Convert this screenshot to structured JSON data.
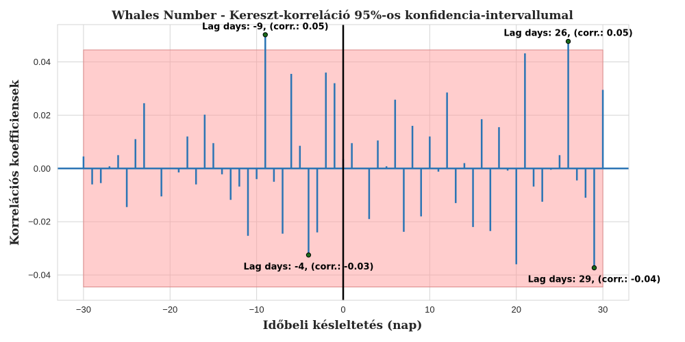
{
  "chart_data": {
    "type": "bar",
    "title": "Whales Number - Kereszt-korreláció 95%-os konfidencia-intervallumal",
    "xlabel": "Időbeli késleltetés (nap)",
    "ylabel": "Korrelációs koefficiensek",
    "xlim": [
      -33,
      33
    ],
    "ylim": [
      -0.0495,
      0.054
    ],
    "x_ticks": [
      -30,
      -20,
      -10,
      0,
      10,
      20,
      30
    ],
    "x_tick_labels": [
      "−30",
      "−20",
      "−10",
      "0",
      "10",
      "20",
      "30"
    ],
    "y_ticks": [
      -0.04,
      -0.02,
      0.0,
      0.02,
      0.04
    ],
    "y_tick_labels": [
      "−0.04",
      "−0.02",
      "0.00",
      "0.02",
      "0.04"
    ],
    "grid": true,
    "confidence_interval": {
      "lower": -0.0445,
      "upper": 0.0445,
      "x_range": [
        -30,
        30
      ]
    },
    "series": [
      {
        "lags": [
          -30,
          -29,
          -28,
          -27,
          -26,
          -25,
          -24,
          -23,
          -22,
          -21,
          -20,
          -19,
          -18,
          -17,
          -16,
          -15,
          -14,
          -13,
          -12,
          -11,
          -10,
          -9,
          -8,
          -7,
          -6,
          -5,
          -4,
          -3,
          -2,
          -1,
          0,
          1,
          2,
          3,
          4,
          5,
          6,
          7,
          8,
          9,
          10,
          11,
          12,
          13,
          14,
          15,
          16,
          17,
          18,
          19,
          20,
          21,
          22,
          23,
          24,
          25,
          26,
          27,
          28,
          29,
          30
        ],
        "values": [
          0.0045,
          -0.006,
          -0.0055,
          0.0008,
          0.005,
          -0.0145,
          0.011,
          0.0245,
          0.0,
          -0.0105,
          0.0,
          -0.0015,
          0.012,
          -0.006,
          0.0202,
          0.0095,
          -0.0022,
          -0.0118,
          -0.0068,
          -0.0253,
          -0.004,
          0.0502,
          -0.005,
          -0.0245,
          0.0355,
          0.0085,
          -0.0325,
          -0.024,
          0.036,
          0.032,
          0.0035,
          0.0095,
          0.0,
          -0.019,
          0.0105,
          0.0008,
          0.0258,
          -0.0238,
          0.016,
          -0.018,
          0.012,
          -0.0012,
          0.0285,
          -0.013,
          0.002,
          -0.022,
          0.0185,
          -0.0235,
          0.0155,
          -0.0008,
          -0.036,
          0.0432,
          -0.0068,
          -0.0125,
          -0.0005,
          0.005,
          0.0477,
          -0.0045,
          -0.011,
          -0.0373,
          0.0295
        ]
      }
    ],
    "annotations": [
      {
        "lag": -9,
        "value": 0.0502,
        "text": "Lag days: -9, (corr.: 0.05)",
        "position": "above"
      },
      {
        "lag": -4,
        "value": -0.0325,
        "text": "Lag days: -4, (corr.: -0.03)",
        "position": "below"
      },
      {
        "lag": 26,
        "value": 0.0477,
        "text": "Lag days: 26, (corr.: 0.05)",
        "position": "above"
      },
      {
        "lag": 29,
        "value": -0.0373,
        "text": "Lag days: 29, (corr.: -0.04)",
        "position": "below"
      }
    ],
    "colors": {
      "bars": "#2a74b4",
      "baseline": "#2a74b4",
      "zero_line": "#000000",
      "confidence_band": "#ff9b9b",
      "markers": "#1a6a1a"
    }
  }
}
